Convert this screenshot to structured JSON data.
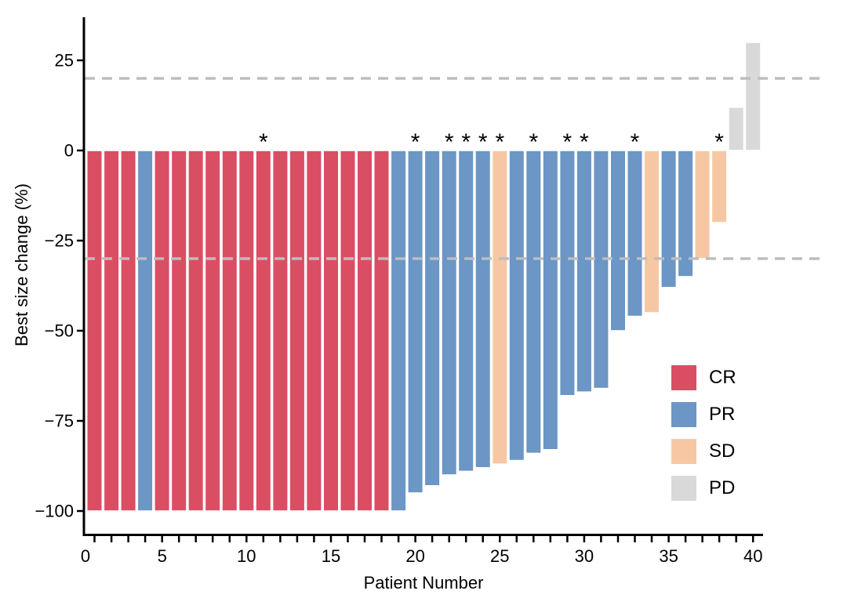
{
  "chart_data": {
    "type": "bar",
    "title": "",
    "xlabel": "Patient Number",
    "ylabel": "Best size change (%)",
    "x": [
      1,
      2,
      3,
      4,
      5,
      6,
      7,
      8,
      9,
      10,
      11,
      12,
      13,
      14,
      15,
      16,
      17,
      18,
      19,
      20,
      21,
      22,
      23,
      24,
      25,
      26,
      27,
      28,
      29,
      30,
      31,
      32,
      33,
      34,
      35,
      36,
      37,
      38,
      39,
      40
    ],
    "values": [
      -100,
      -100,
      -100,
      -100,
      -100,
      -100,
      -100,
      -100,
      -100,
      -100,
      -100,
      -100,
      -100,
      -100,
      -100,
      -100,
      -100,
      -100,
      -100,
      -95,
      -93,
      -90,
      -89,
      -88,
      -87,
      -86,
      -84,
      -83,
      -68,
      -67,
      -66,
      -50,
      -46,
      -45,
      -38,
      -35,
      -30,
      -20,
      12,
      30
    ],
    "response": [
      "CR",
      "CR",
      "CR",
      "PR",
      "CR",
      "CR",
      "CR",
      "CR",
      "CR",
      "CR",
      "CR",
      "CR",
      "CR",
      "CR",
      "CR",
      "CR",
      "CR",
      "CR",
      "PR",
      "PR",
      "PR",
      "PR",
      "PR",
      "PR",
      "SD",
      "PR",
      "PR",
      "PR",
      "PR",
      "PR",
      "PR",
      "PR",
      "PR",
      "SD",
      "PR",
      "PR",
      "SD",
      "SD",
      "PD",
      "PD"
    ],
    "asterisk_patients": [
      11,
      20,
      22,
      23,
      24,
      25,
      27,
      29,
      30,
      33,
      38
    ],
    "annotation_symbol": "*",
    "reference_lines": [
      20,
      -30
    ],
    "x_tick_labels": [
      0,
      5,
      10,
      15,
      20,
      25,
      30,
      35,
      40
    ],
    "y_tick_labels": [
      25,
      0,
      -25,
      -50,
      -75,
      -100
    ],
    "xlim": [
      0,
      40.6
    ],
    "ylim": [
      -105,
      37
    ],
    "grid": false,
    "legend_position": "right-inside",
    "legend": [
      {
        "label": "CR",
        "color": "#DA4E64"
      },
      {
        "label": "PR",
        "color": "#6B96C5"
      },
      {
        "label": "SD",
        "color": "#F7C7A4"
      },
      {
        "label": "PD",
        "color": "#D9D9D9"
      }
    ],
    "colors": {
      "dashed_line": "#BDBDBD",
      "axis": "#000000",
      "bar_stroke": "#FFFFFF"
    }
  }
}
